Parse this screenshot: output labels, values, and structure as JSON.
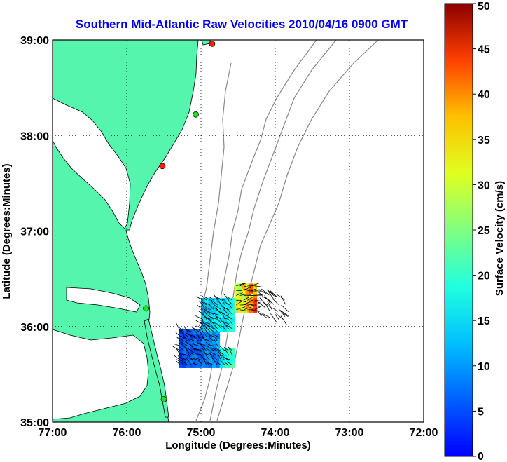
{
  "chart_data": {
    "type": "heatmap",
    "title": "Southern Mid-Atlantic Raw Velocities 2010/04/16 0900 GMT",
    "xlabel": "Longitude (Degrees:Minutes)",
    "ylabel": "Latitude (Degrees:Minutes)",
    "x_ticks": [
      "77:00",
      "76:00",
      "75:00",
      "74:00",
      "73:00",
      "72:00"
    ],
    "y_ticks": [
      "39:00",
      "38:00",
      "37:00",
      "36:00",
      "35:00"
    ],
    "xlim": [
      -77,
      -72
    ],
    "ylim": [
      35,
      39
    ],
    "grid": true,
    "colorbar": {
      "label": "Surface Velocity (cm/s)",
      "range": [
        0,
        50
      ],
      "ticks": [
        "0",
        "5",
        "10",
        "15",
        "20",
        "25",
        "30",
        "35",
        "40",
        "45",
        "50"
      ],
      "colormap": "jet"
    },
    "colors": {
      "land": "#55f5ad",
      "coastline": "#000000",
      "bathymetry": "#888888",
      "title": "#0000ee"
    },
    "stations": [
      {
        "lon": -74.85,
        "lat": 38.96,
        "color": "#ff2200"
      },
      {
        "lon": -75.07,
        "lat": 38.22,
        "color": "#22dd22"
      },
      {
        "lon": -75.52,
        "lat": 37.68,
        "color": "#ff2200"
      },
      {
        "lon": -75.74,
        "lat": 36.19,
        "color": "#22dd22"
      },
      {
        "lon": -75.5,
        "lat": 35.24,
        "color": "#22dd22"
      }
    ],
    "velocity_clusters": [
      {
        "lon0": -75.3,
        "lon1": -74.75,
        "lat0": 35.57,
        "lat1": 35.95,
        "vmin": 8,
        "vmax": 16
      },
      {
        "lon0": -74.75,
        "lon1": -74.55,
        "lat0": 35.57,
        "lat1": 35.75,
        "vmin": 16,
        "vmax": 25
      },
      {
        "lon0": -75.0,
        "lon1": -74.55,
        "lat0": 35.95,
        "lat1": 36.3,
        "vmin": 14,
        "vmax": 22
      },
      {
        "lon0": -74.55,
        "lon1": -74.25,
        "lat0": 36.15,
        "lat1": 36.45,
        "vmin": 22,
        "vmax": 45
      }
    ]
  }
}
